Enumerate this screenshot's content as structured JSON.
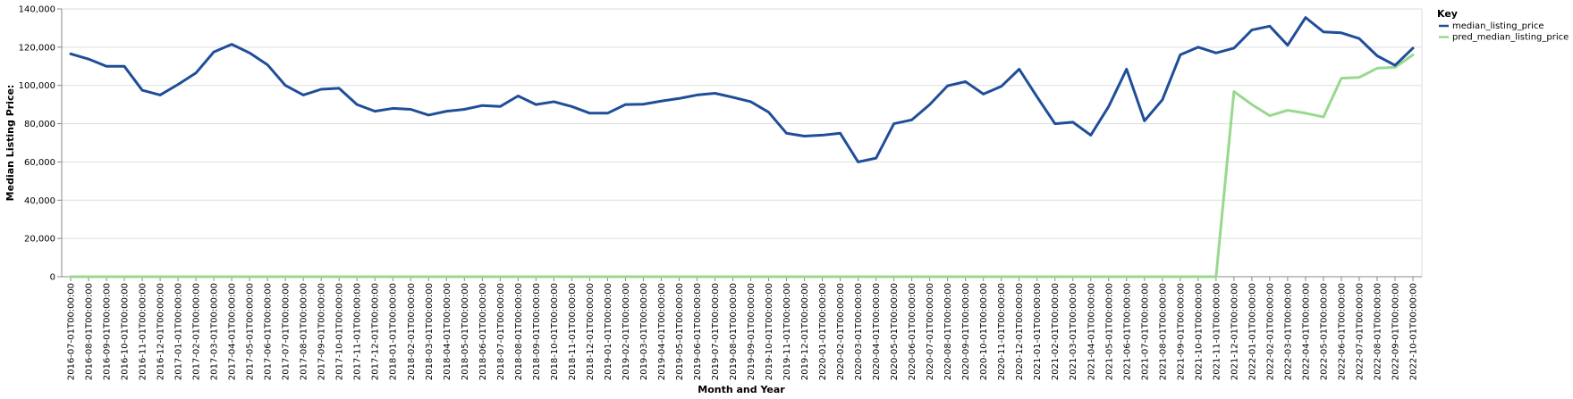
{
  "chart_data": {
    "type": "line",
    "xlabel": "Month and Year",
    "ylabel": "Median Listing Price:",
    "ylim": [
      0,
      140000
    ],
    "yticks": [
      0,
      20000,
      40000,
      60000,
      80000,
      100000,
      120000,
      140000
    ],
    "grid": true,
    "legend": {
      "title": "Key",
      "placement": "top-right"
    },
    "x": [
      "2016-07-01T00:00:00",
      "2016-08-01T00:00:00",
      "2016-09-01T00:00:00",
      "2016-10-01T00:00:00",
      "2016-11-01T00:00:00",
      "2016-12-01T00:00:00",
      "2017-01-01T00:00:00",
      "2017-02-01T00:00:00",
      "2017-03-01T00:00:00",
      "2017-04-01T00:00:00",
      "2017-05-01T00:00:00",
      "2017-06-01T00:00:00",
      "2017-07-01T00:00:00",
      "2017-08-01T00:00:00",
      "2017-09-01T00:00:00",
      "2017-10-01T00:00:00",
      "2017-11-01T00:00:00",
      "2017-12-01T00:00:00",
      "2018-01-01T00:00:00",
      "2018-02-01T00:00:00",
      "2018-03-01T00:00:00",
      "2018-04-01T00:00:00",
      "2018-05-01T00:00:00",
      "2018-06-01T00:00:00",
      "2018-07-01T00:00:00",
      "2018-08-01T00:00:00",
      "2018-09-01T00:00:00",
      "2018-10-01T00:00:00",
      "2018-11-01T00:00:00",
      "2018-12-01T00:00:00",
      "2019-01-01T00:00:00",
      "2019-02-01T00:00:00",
      "2019-03-01T00:00:00",
      "2019-04-01T00:00:00",
      "2019-05-01T00:00:00",
      "2019-06-01T00:00:00",
      "2019-07-01T00:00:00",
      "2019-08-01T00:00:00",
      "2019-09-01T00:00:00",
      "2019-10-01T00:00:00",
      "2019-11-01T00:00:00",
      "2019-12-01T00:00:00",
      "2020-01-01T00:00:00",
      "2020-02-01T00:00:00",
      "2020-03-01T00:00:00",
      "2020-04-01T00:00:00",
      "2020-05-01T00:00:00",
      "2020-06-01T00:00:00",
      "2020-07-01T00:00:00",
      "2020-08-01T00:00:00",
      "2020-09-01T00:00:00",
      "2020-10-01T00:00:00",
      "2020-11-01T00:00:00",
      "2020-12-01T00:00:00",
      "2021-01-01T00:00:00",
      "2021-02-01T00:00:00",
      "2021-03-01T00:00:00",
      "2021-04-01T00:00:00",
      "2021-05-01T00:00:00",
      "2021-06-01T00:00:00",
      "2021-07-01T00:00:00",
      "2021-08-01T00:00:00",
      "2021-09-01T00:00:00",
      "2021-10-01T00:00:00",
      "2021-11-01T00:00:00",
      "2021-12-01T00:00:00",
      "2022-01-01T00:00:00",
      "2022-02-01T00:00:00",
      "2022-03-01T00:00:00",
      "2022-04-01T00:00:00",
      "2022-05-01T00:00:00",
      "2022-06-01T00:00:00",
      "2022-07-01T00:00:00",
      "2022-08-01T00:00:00",
      "2022-09-01T00:00:00",
      "2022-10-01T00:00:00"
    ],
    "series": [
      {
        "name": "median_listing_price",
        "color": "#1f4e99",
        "values": [
          116500,
          113800,
          110000,
          110000,
          97500,
          95000,
          100500,
          106500,
          117500,
          121500,
          117000,
          110800,
          100000,
          95000,
          98000,
          98500,
          90000,
          86500,
          88000,
          87500,
          84500,
          86500,
          87500,
          89500,
          89000,
          94500,
          90000,
          91500,
          89000,
          85500,
          85500,
          90000,
          90200,
          91800,
          93200,
          95000,
          95900,
          93800,
          91500,
          86000,
          75000,
          73500,
          74000,
          75000,
          60000,
          62000,
          80000,
          82000,
          90000,
          99800,
          102000,
          95500,
          99500,
          108500,
          94000,
          80000,
          80800,
          74000,
          89000,
          108500,
          81500,
          92500,
          116000,
          120000,
          117000,
          119500,
          129000,
          131000,
          121000,
          135500,
          128000,
          127500,
          124500,
          115500,
          110500,
          119500
        ]
      },
      {
        "name": "pred_median_listing_price",
        "color": "#98d98e",
        "values": [
          0,
          0,
          0,
          0,
          0,
          0,
          0,
          0,
          0,
          0,
          0,
          0,
          0,
          0,
          0,
          0,
          0,
          0,
          0,
          0,
          0,
          0,
          0,
          0,
          0,
          0,
          0,
          0,
          0,
          0,
          0,
          0,
          0,
          0,
          0,
          0,
          0,
          0,
          0,
          0,
          0,
          0,
          0,
          0,
          0,
          0,
          0,
          0,
          0,
          0,
          0,
          0,
          0,
          0,
          0,
          0,
          0,
          0,
          0,
          0,
          0,
          0,
          0,
          0,
          0,
          96800,
          90000,
          84200,
          87000,
          85500,
          83500,
          103800,
          104200,
          109000,
          109500,
          116000
        ]
      }
    ]
  }
}
